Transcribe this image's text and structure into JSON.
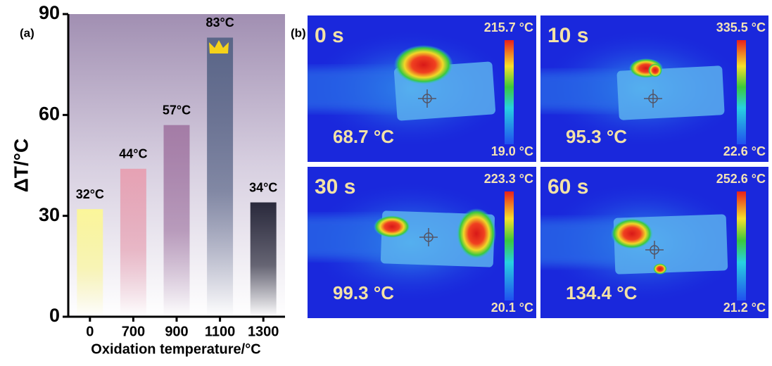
{
  "chart_data": {
    "type": "bar",
    "panel_label": "(a)",
    "ylabel": "ΔT/°C",
    "xlabel": "Oxidation temperature/°C",
    "categories": [
      "0",
      "700",
      "900",
      "1100",
      "1300"
    ],
    "values": [
      32,
      44,
      57,
      83,
      34
    ],
    "value_labels": [
      "32°C",
      "44°C",
      "57°C",
      "83°C",
      "34°C"
    ],
    "colors": [
      "#fbf69a",
      "#e6a2b4",
      "#a47ca6",
      "#5a6688",
      "#2a2a3c"
    ],
    "ylim": [
      0,
      90
    ],
    "yticks": [
      0,
      30,
      60,
      90
    ]
  },
  "thermal_images": {
    "panel_label": "(b)",
    "panels": [
      {
        "time": "0 s",
        "max": "215.7 °C",
        "min": "19.0 °C",
        "spot": "68.7 °C"
      },
      {
        "time": "10 s",
        "max": "335.5 °C",
        "min": "22.6 °C",
        "spot": "95.3 °C"
      },
      {
        "time": "30 s",
        "max": "223.3 °C",
        "min": "20.1 °C",
        "spot": "99.3 °C"
      },
      {
        "time": "60 s",
        "max": "252.6 °C",
        "min": "21.2 °C",
        "spot": "134.4 °C"
      }
    ]
  }
}
